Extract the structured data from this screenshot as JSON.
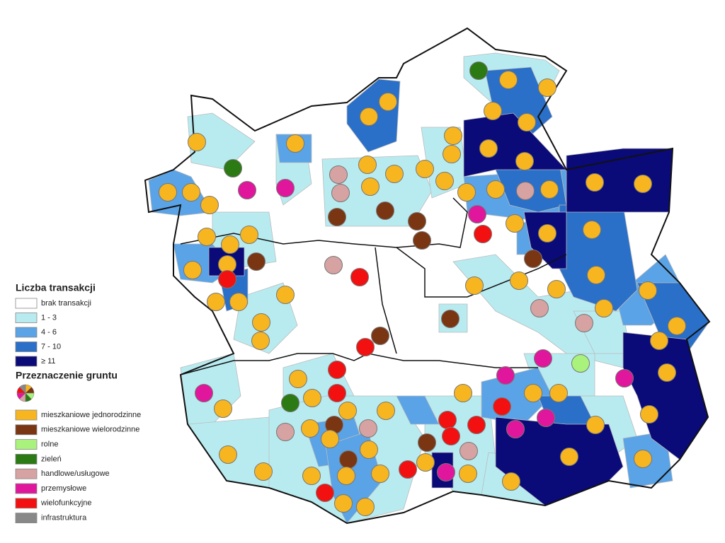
{
  "legend": {
    "title": "Liczba transakcji",
    "classes": [
      {
        "label": "brak transakcji",
        "color": "#ffffff"
      },
      {
        "label": "1 - 3",
        "color": "#b8ebf0"
      },
      {
        "label": "4 - 6",
        "color": "#5aa3e6"
      },
      {
        "label": "7 - 10",
        "color": "#2a6fc8"
      },
      {
        "label": "≥ 11",
        "color": "#0a0a78"
      }
    ],
    "land_use_title": "Przeznaczenie gruntu",
    "land_use": [
      {
        "label": "mieszkaniowe jednorodzinne",
        "color": "#f7b61f"
      },
      {
        "label": "mieszkaniowe wielorodzinne",
        "color": "#7a3512"
      },
      {
        "label": "rolne",
        "color": "#a9f27c"
      },
      {
        "label": "zieleń",
        "color": "#2b7a14"
      },
      {
        "label": "handlowe/usługowe",
        "color": "#d6a2a2"
      },
      {
        "label": "przemysłowe",
        "color": "#e0169c"
      },
      {
        "label": "wielofunkcyjne",
        "color": "#f21010"
      },
      {
        "label": "infrastruktura",
        "color": "#888888"
      }
    ]
  }
}
